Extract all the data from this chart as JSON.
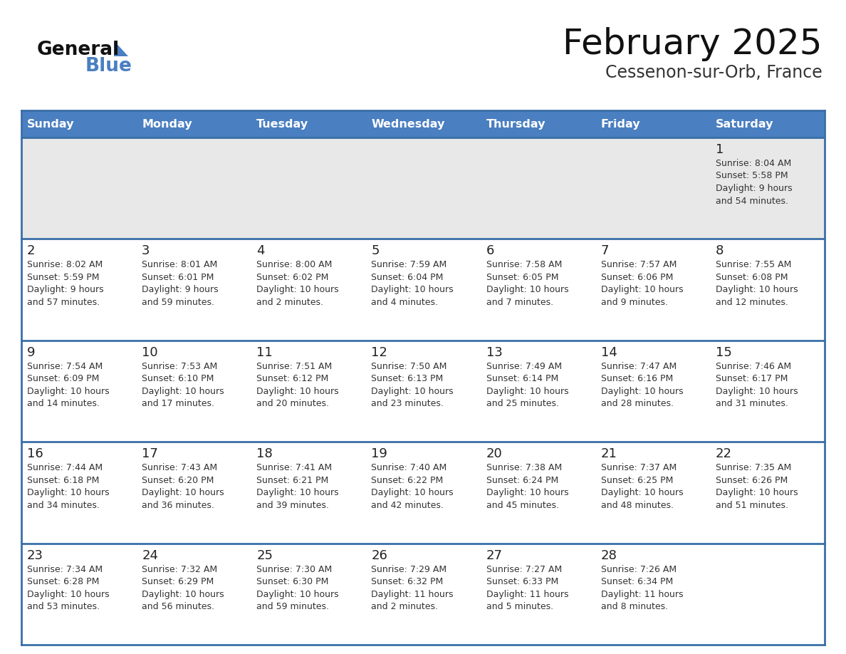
{
  "title": "February 2025",
  "subtitle": "Cessenon-sur-Orb, France",
  "days_of_week": [
    "Sunday",
    "Monday",
    "Tuesday",
    "Wednesday",
    "Thursday",
    "Friday",
    "Saturday"
  ],
  "header_bg": "#4a7fc1",
  "header_text": "#FFFFFF",
  "row1_bg": "#e8e8e8",
  "cell_bg": "#FFFFFF",
  "cell_bg_alt": "#f0f0f0",
  "border_color": "#3a6fa8",
  "day_num_color": "#222222",
  "text_color": "#333333",
  "title_color": "#111111",
  "subtitle_color": "#333333",
  "logo_general_color": "#111111",
  "logo_blue_color": "#4a7fc1",
  "weeks": [
    [
      {
        "day": null,
        "info": null
      },
      {
        "day": null,
        "info": null
      },
      {
        "day": null,
        "info": null
      },
      {
        "day": null,
        "info": null
      },
      {
        "day": null,
        "info": null
      },
      {
        "day": null,
        "info": null
      },
      {
        "day": 1,
        "info": [
          "Sunrise: 8:04 AM",
          "Sunset: 5:58 PM",
          "Daylight: 9 hours",
          "and 54 minutes."
        ]
      }
    ],
    [
      {
        "day": 2,
        "info": [
          "Sunrise: 8:02 AM",
          "Sunset: 5:59 PM",
          "Daylight: 9 hours",
          "and 57 minutes."
        ]
      },
      {
        "day": 3,
        "info": [
          "Sunrise: 8:01 AM",
          "Sunset: 6:01 PM",
          "Daylight: 9 hours",
          "and 59 minutes."
        ]
      },
      {
        "day": 4,
        "info": [
          "Sunrise: 8:00 AM",
          "Sunset: 6:02 PM",
          "Daylight: 10 hours",
          "and 2 minutes."
        ]
      },
      {
        "day": 5,
        "info": [
          "Sunrise: 7:59 AM",
          "Sunset: 6:04 PM",
          "Daylight: 10 hours",
          "and 4 minutes."
        ]
      },
      {
        "day": 6,
        "info": [
          "Sunrise: 7:58 AM",
          "Sunset: 6:05 PM",
          "Daylight: 10 hours",
          "and 7 minutes."
        ]
      },
      {
        "day": 7,
        "info": [
          "Sunrise: 7:57 AM",
          "Sunset: 6:06 PM",
          "Daylight: 10 hours",
          "and 9 minutes."
        ]
      },
      {
        "day": 8,
        "info": [
          "Sunrise: 7:55 AM",
          "Sunset: 6:08 PM",
          "Daylight: 10 hours",
          "and 12 minutes."
        ]
      }
    ],
    [
      {
        "day": 9,
        "info": [
          "Sunrise: 7:54 AM",
          "Sunset: 6:09 PM",
          "Daylight: 10 hours",
          "and 14 minutes."
        ]
      },
      {
        "day": 10,
        "info": [
          "Sunrise: 7:53 AM",
          "Sunset: 6:10 PM",
          "Daylight: 10 hours",
          "and 17 minutes."
        ]
      },
      {
        "day": 11,
        "info": [
          "Sunrise: 7:51 AM",
          "Sunset: 6:12 PM",
          "Daylight: 10 hours",
          "and 20 minutes."
        ]
      },
      {
        "day": 12,
        "info": [
          "Sunrise: 7:50 AM",
          "Sunset: 6:13 PM",
          "Daylight: 10 hours",
          "and 23 minutes."
        ]
      },
      {
        "day": 13,
        "info": [
          "Sunrise: 7:49 AM",
          "Sunset: 6:14 PM",
          "Daylight: 10 hours",
          "and 25 minutes."
        ]
      },
      {
        "day": 14,
        "info": [
          "Sunrise: 7:47 AM",
          "Sunset: 6:16 PM",
          "Daylight: 10 hours",
          "and 28 minutes."
        ]
      },
      {
        "day": 15,
        "info": [
          "Sunrise: 7:46 AM",
          "Sunset: 6:17 PM",
          "Daylight: 10 hours",
          "and 31 minutes."
        ]
      }
    ],
    [
      {
        "day": 16,
        "info": [
          "Sunrise: 7:44 AM",
          "Sunset: 6:18 PM",
          "Daylight: 10 hours",
          "and 34 minutes."
        ]
      },
      {
        "day": 17,
        "info": [
          "Sunrise: 7:43 AM",
          "Sunset: 6:20 PM",
          "Daylight: 10 hours",
          "and 36 minutes."
        ]
      },
      {
        "day": 18,
        "info": [
          "Sunrise: 7:41 AM",
          "Sunset: 6:21 PM",
          "Daylight: 10 hours",
          "and 39 minutes."
        ]
      },
      {
        "day": 19,
        "info": [
          "Sunrise: 7:40 AM",
          "Sunset: 6:22 PM",
          "Daylight: 10 hours",
          "and 42 minutes."
        ]
      },
      {
        "day": 20,
        "info": [
          "Sunrise: 7:38 AM",
          "Sunset: 6:24 PM",
          "Daylight: 10 hours",
          "and 45 minutes."
        ]
      },
      {
        "day": 21,
        "info": [
          "Sunrise: 7:37 AM",
          "Sunset: 6:25 PM",
          "Daylight: 10 hours",
          "and 48 minutes."
        ]
      },
      {
        "day": 22,
        "info": [
          "Sunrise: 7:35 AM",
          "Sunset: 6:26 PM",
          "Daylight: 10 hours",
          "and 51 minutes."
        ]
      }
    ],
    [
      {
        "day": 23,
        "info": [
          "Sunrise: 7:34 AM",
          "Sunset: 6:28 PM",
          "Daylight: 10 hours",
          "and 53 minutes."
        ]
      },
      {
        "day": 24,
        "info": [
          "Sunrise: 7:32 AM",
          "Sunset: 6:29 PM",
          "Daylight: 10 hours",
          "and 56 minutes."
        ]
      },
      {
        "day": 25,
        "info": [
          "Sunrise: 7:30 AM",
          "Sunset: 6:30 PM",
          "Daylight: 10 hours",
          "and 59 minutes."
        ]
      },
      {
        "day": 26,
        "info": [
          "Sunrise: 7:29 AM",
          "Sunset: 6:32 PM",
          "Daylight: 11 hours",
          "and 2 minutes."
        ]
      },
      {
        "day": 27,
        "info": [
          "Sunrise: 7:27 AM",
          "Sunset: 6:33 PM",
          "Daylight: 11 hours",
          "and 5 minutes."
        ]
      },
      {
        "day": 28,
        "info": [
          "Sunrise: 7:26 AM",
          "Sunset: 6:34 PM",
          "Daylight: 11 hours",
          "and 8 minutes."
        ]
      },
      {
        "day": null,
        "info": null
      }
    ]
  ]
}
